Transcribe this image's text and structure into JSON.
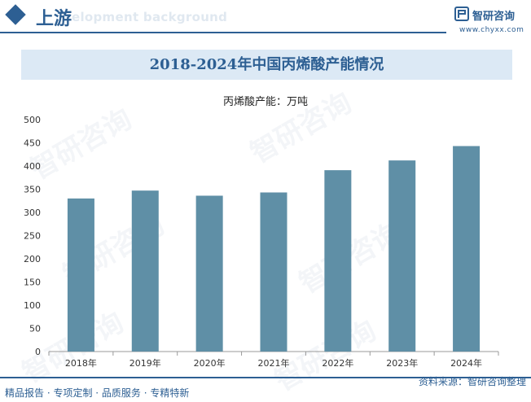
{
  "header": {
    "section_title": "上游",
    "watermark_text": "elopment background",
    "brand_name": "智研咨询",
    "brand_url": "www.chyxx.com"
  },
  "watermark": "智研咨询",
  "colors": {
    "brand": "#2d5f93",
    "bar": "#5f8fa6",
    "title_band": "#dce9f5"
  },
  "chart_data": {
    "type": "bar",
    "title": "2018-2024年中国丙烯酸产能情况",
    "subtitle": "丙烯酸产能：万吨",
    "categories": [
      "2018年",
      "2019年",
      "2020年",
      "2021年",
      "2022年",
      "2023年",
      "2024年"
    ],
    "values": [
      330,
      347,
      336,
      343,
      391,
      412,
      443
    ],
    "ylim": [
      0,
      500
    ],
    "yticks": [
      0,
      50,
      100,
      150,
      200,
      250,
      300,
      350,
      400,
      450,
      500
    ],
    "grid": false,
    "legend": "none"
  },
  "footer": {
    "left": "精品报告 · 专项定制 · 品质服务 · 专精特新",
    "right": "资料来源：智研咨询整理"
  }
}
